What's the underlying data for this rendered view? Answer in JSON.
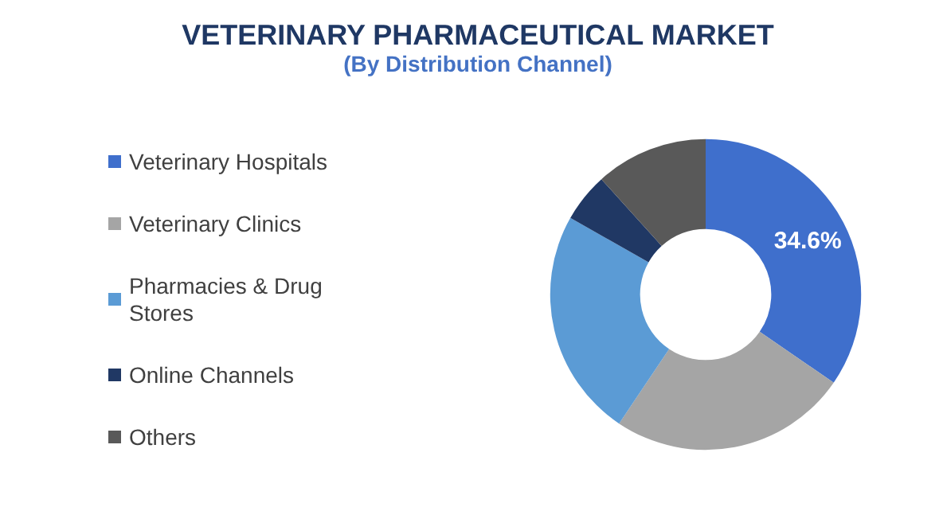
{
  "chart_data": {
    "type": "donut",
    "title": "VETERINARY PHARMACEUTICAL MARKET",
    "subtitle": "(By Distribution Channel)",
    "categories": [
      "Veterinary Hospitals",
      "Veterinary Clinics",
      "Pharmacies & Drug Stores",
      "Online Channels",
      "Others"
    ],
    "values": [
      34.6,
      24.8,
      23.8,
      5.1,
      11.7
    ],
    "value_labels": [
      "34.6%",
      null,
      null,
      null,
      null
    ],
    "colors": [
      "#3f6fcc",
      "#a5a5a5",
      "#5b9bd5",
      "#203864",
      "#595959"
    ],
    "legend": "left"
  }
}
